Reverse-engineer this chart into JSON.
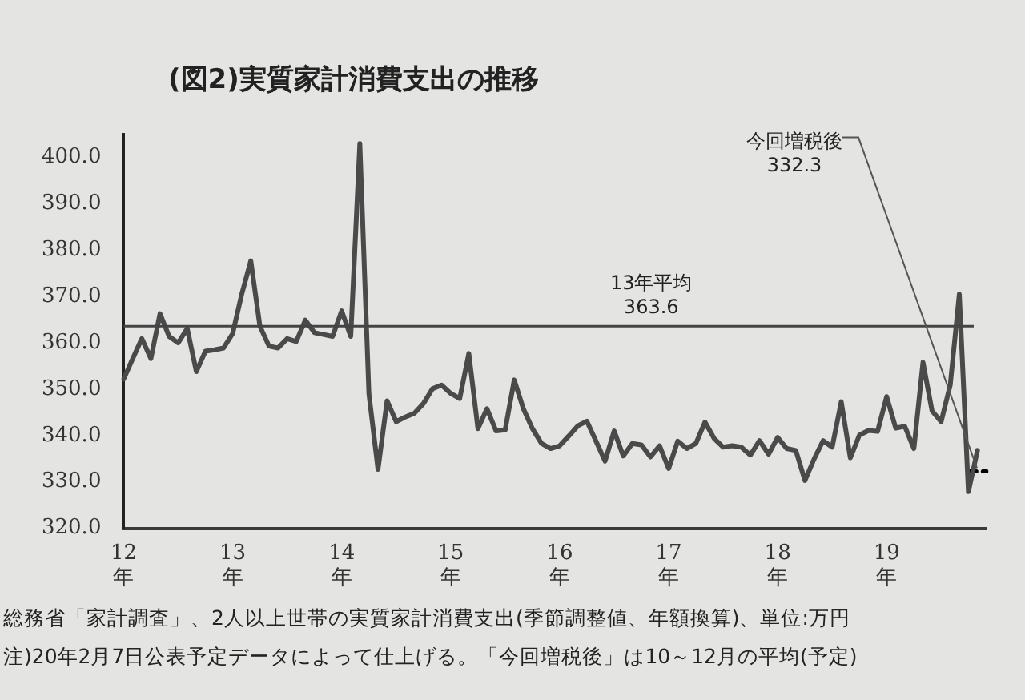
{
  "chart_data": {
    "type": "line",
    "title": "(図2)実質家計消費支出の推移",
    "categories": [
      "12年",
      null,
      null,
      null,
      null,
      null,
      null,
      null,
      null,
      null,
      null,
      null,
      "13年",
      null,
      null,
      null,
      null,
      null,
      null,
      null,
      null,
      null,
      null,
      null,
      "14年",
      null,
      null,
      null,
      null,
      null,
      null,
      null,
      null,
      null,
      null,
      null,
      "15年",
      null,
      null,
      null,
      null,
      null,
      null,
      null,
      null,
      null,
      null,
      null,
      "16年",
      null,
      null,
      null,
      null,
      null,
      null,
      null,
      null,
      null,
      null,
      null,
      "17年",
      null,
      null,
      null,
      null,
      null,
      null,
      null,
      null,
      null,
      null,
      null,
      "18年",
      null,
      null,
      null,
      null,
      null,
      null,
      null,
      null,
      null,
      null,
      null,
      "19年",
      null,
      null,
      null,
      null,
      null,
      null,
      null,
      null,
      null,
      null,
      null
    ],
    "series": [
      {
        "color": "#4a4a4a",
        "values": [
          352.2,
          356.6,
          360.9,
          356.6,
          366.3,
          361.4,
          360.0,
          363.1,
          353.8,
          358.2,
          358.5,
          358.9,
          362.0,
          370.5,
          377.7,
          363.6,
          359.3,
          358.9,
          360.9,
          360.3,
          364.9,
          362.2,
          361.8,
          361.4,
          366.9,
          361.4,
          403,
          349.0,
          332.7,
          347.5,
          343.0,
          344.0,
          344.8,
          346.9,
          350.1,
          350.9,
          349.1,
          348.0,
          357.7,
          341.5,
          345.8,
          341.0,
          341.2,
          352.0,
          345.8,
          341.5,
          338.3,
          337.2,
          337.8,
          339.9,
          342.1,
          343.1,
          338.8,
          334.5,
          341.0,
          335.6,
          338.3,
          338.0,
          335.4,
          337.8,
          332.9,
          338.8,
          337.2,
          338.3,
          342.9,
          339.4,
          337.5,
          337.8,
          337.5,
          335.8,
          338.9,
          336.0,
          339.6,
          337.2,
          336.8,
          330.3,
          334.9,
          338.9,
          337.5,
          347.3,
          335.2,
          340.1,
          341.1,
          340.9,
          348.4,
          341.6,
          342.0,
          337.2,
          355.8,
          345.3,
          343.0,
          350.9,
          370.5,
          327.9,
          336.8,
          null
        ]
      },
      {
        "color": "#000000",
        "line_style": "dashed",
        "values": [
          null,
          null,
          null,
          null,
          null,
          null,
          null,
          null,
          null,
          null,
          null,
          null,
          null,
          null,
          null,
          null,
          null,
          null,
          null,
          null,
          null,
          null,
          null,
          null,
          null,
          null,
          null,
          null,
          null,
          null,
          null,
          null,
          null,
          null,
          null,
          null,
          null,
          null,
          null,
          null,
          null,
          null,
          null,
          null,
          null,
          null,
          null,
          null,
          null,
          null,
          null,
          null,
          null,
          null,
          null,
          null,
          null,
          null,
          null,
          null,
          null,
          null,
          null,
          null,
          null,
          null,
          null,
          null,
          null,
          null,
          null,
          null,
          null,
          null,
          null,
          null,
          null,
          null,
          null,
          null,
          null,
          null,
          null,
          null,
          null,
          null,
          null,
          null,
          null,
          null,
          null,
          null,
          null,
          332.3,
          332.3,
          332.3
        ]
      }
    ],
    "ylim": [
      320,
      405
    ],
    "yticks": [
      {
        "value": 320,
        "label": "320.0"
      },
      {
        "value": 330,
        "label": "330.0"
      },
      {
        "value": 340,
        "label": "340.0"
      },
      {
        "value": 350,
        "label": "350.0"
      },
      {
        "value": 360,
        "label": "360.0"
      },
      {
        "value": 370,
        "label": "370.0"
      },
      {
        "value": 380,
        "label": "380.0"
      },
      {
        "value": 390,
        "label": "390.0"
      },
      {
        "value": 400,
        "label": "400.0"
      }
    ],
    "grid": false,
    "legend": false,
    "marker": "none",
    "ref_lines": [
      {
        "axis": "y",
        "value": 363.6,
        "label": "13年平均 363.6",
        "color": "#444444"
      }
    ],
    "annotations": [
      "今回増税後 332.3",
      "総務省「家計調査」、2人以上世帯の実質家計消費支出(季節調整値、年額換算)、単位:万円",
      "注)20年2月7日公表予定データによって仕上げる。「今回増税後」は10～12月の平均(予定)"
    ]
  }
}
